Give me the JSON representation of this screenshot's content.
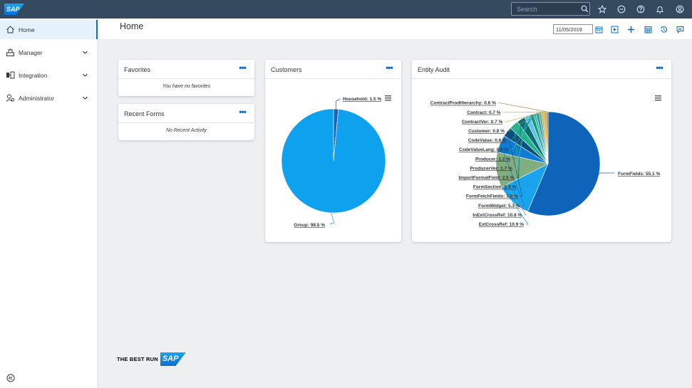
{
  "shell": {
    "logo_text": "SAP",
    "search_placeholder": "Search"
  },
  "sidebar": {
    "items": [
      {
        "label": "Home",
        "icon": "home-icon",
        "active": true
      },
      {
        "label": "Manager",
        "icon": "manager-icon",
        "expandable": true
      },
      {
        "label": "Integration",
        "icon": "integration-icon",
        "expandable": true
      },
      {
        "label": "Administrator",
        "icon": "administrator-icon",
        "expandable": true
      }
    ]
  },
  "header": {
    "title": "Home",
    "date_value": "11/05/2019"
  },
  "tiles": {
    "favorites": {
      "title": "Favorites",
      "empty_text": "You have no favorites"
    },
    "recent_forms": {
      "title": "Recent Forms",
      "empty_text": "No Recent Activity"
    },
    "customers": {
      "title": "Customers"
    },
    "entity_audit": {
      "title": "Entity Audit"
    }
  },
  "footer": {
    "text": "THE BEST RUN",
    "logo_text": "SAP"
  },
  "colors": {
    "shell_bg": "#354a5f",
    "accent": "#0a6ed1",
    "customers_group": "#0ea2ee",
    "customers_household": "#1565c0"
  },
  "chart_data": [
    {
      "type": "pie",
      "title": "Customers",
      "slices": [
        {
          "label": "Household",
          "value": 1.5,
          "color": "#1565c0"
        },
        {
          "label": "Group",
          "value": 98.5,
          "color": "#0ea2ee"
        }
      ]
    },
    {
      "type": "pie",
      "title": "Entity Audit",
      "slices": [
        {
          "label": "FormFields",
          "value": 55.1,
          "color": "#0d64b8"
        },
        {
          "label": "ExtCrossRef",
          "value": 10.9,
          "color": "#1aa3ee"
        },
        {
          "label": "InExtCrossRef",
          "value": 10.8,
          "color": "#82ad7e"
        },
        {
          "label": "FormWidget",
          "value": 5.3,
          "color": "#0e7cd4"
        },
        {
          "label": "FormFetchFields",
          "value": 3.0,
          "color": "#0d4f7c"
        },
        {
          "label": "FormSection",
          "value": 2.8,
          "color": "#23b38c"
        },
        {
          "label": "ImportFormatField",
          "value": 2.5,
          "color": "#0b6e73"
        },
        {
          "label": "ProducerVer",
          "value": 1.7,
          "color": "#5cc4e8"
        },
        {
          "label": "Producer",
          "value": 1.2,
          "color": "#16997a"
        },
        {
          "label": "CodeValueLang",
          "value": 0.8,
          "color": "#3fb5a2"
        },
        {
          "label": "CodeValue",
          "value": 0.8,
          "color": "#0f8fb3"
        },
        {
          "label": "Customer",
          "value": 0.8,
          "color": "#7ba36f"
        },
        {
          "label": "ContractVer",
          "value": 0.7,
          "color": "#c9b35a"
        },
        {
          "label": "Contract",
          "value": 0.7,
          "color": "#d4a342"
        },
        {
          "label": "ContractProdHierarchy",
          "value": 0.6,
          "color": "#9c8a4a"
        }
      ]
    }
  ]
}
